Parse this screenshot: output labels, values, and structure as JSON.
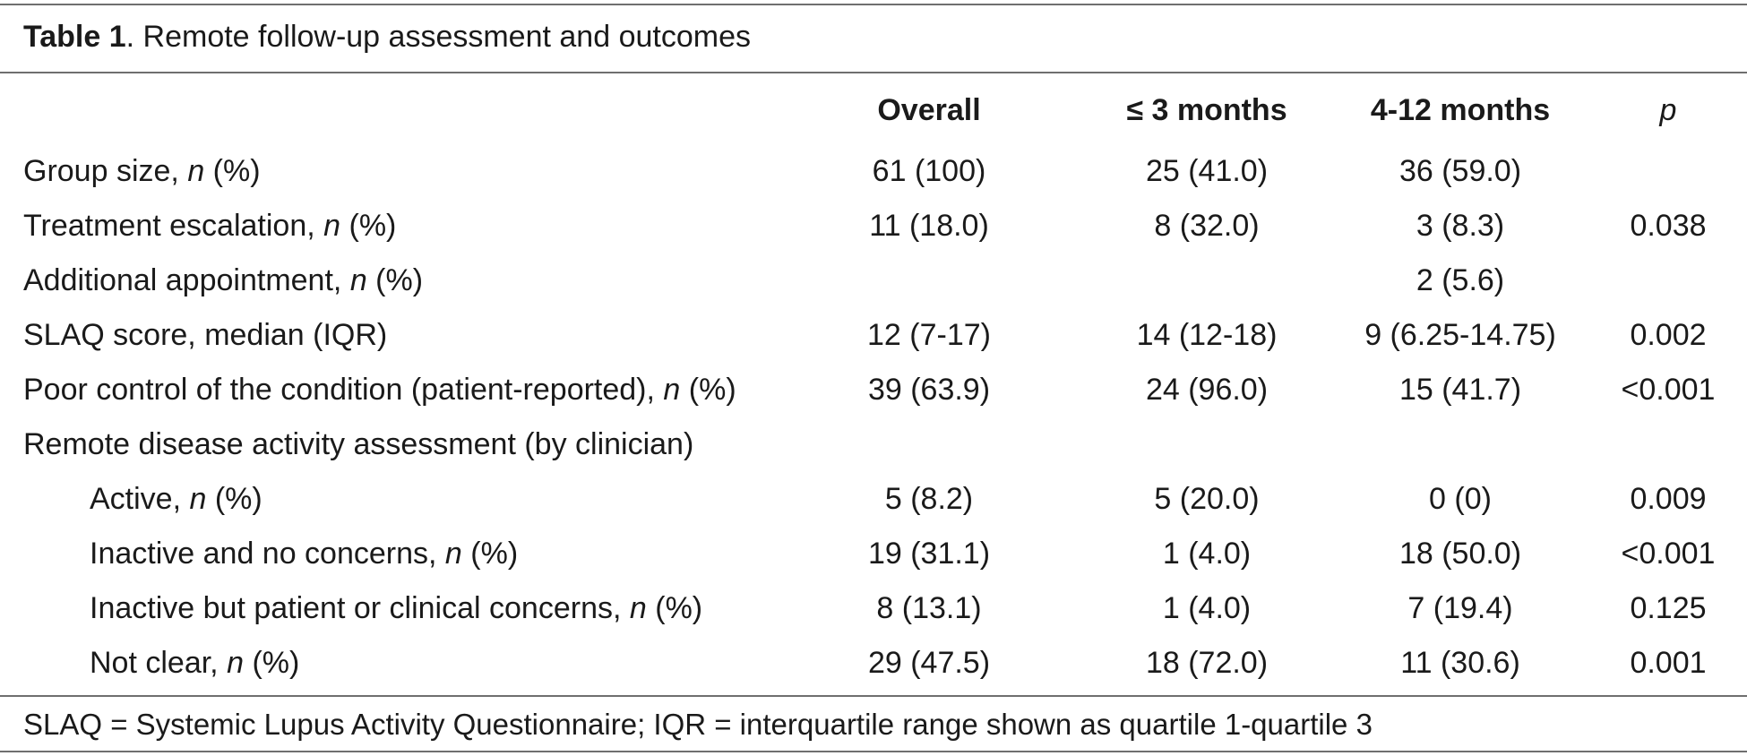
{
  "table": {
    "title_prefix": "Table 1",
    "title_rest": ". Remote follow-up assessment and outcomes",
    "columns": {
      "overall": "Overall",
      "le3": "≤ 3 months",
      "m4_12": "4-12 months",
      "p": "p"
    },
    "rows": [
      {
        "pre": "Group size, ",
        "it": "n",
        "post": " (%)",
        "overall": "61 (100)",
        "le3": "25 (41.0)",
        "m4_12": "36 (59.0)",
        "p": ""
      },
      {
        "pre": "Treatment escalation, ",
        "it": "n",
        "post": " (%)",
        "overall": "11 (18.0)",
        "le3": "8 (32.0)",
        "m4_12": "3 (8.3)",
        "p": "0.038"
      },
      {
        "pre": "Additional appointment, ",
        "it": "n",
        "post": " (%)",
        "overall": "",
        "le3": "",
        "m4_12": "2 (5.6)",
        "p": ""
      },
      {
        "pre": "SLAQ score, median (IQR)",
        "it": "",
        "post": "",
        "overall": "12 (7-17)",
        "le3": "14 (12-18)",
        "m4_12": "9 (6.25-14.75)",
        "p": "0.002"
      },
      {
        "pre": "Poor control of the condition (patient-reported), ",
        "it": "n",
        "post": " (%)",
        "overall": "39 (63.9)",
        "le3": "24 (96.0)",
        "m4_12": "15 (41.7)",
        "p": "<0.001"
      },
      {
        "pre": "Remote disease activity assessment (by clinician)",
        "it": "",
        "post": "",
        "overall": "",
        "le3": "",
        "m4_12": "",
        "p": ""
      },
      {
        "pre": "Active, ",
        "it": "n",
        "post": " (%)",
        "overall": "5 (8.2)",
        "le3": "5 (20.0)",
        "m4_12": "0 (0)",
        "p": "0.009"
      },
      {
        "pre": "Inactive and no concerns, ",
        "it": "n",
        "post": " (%)",
        "overall": "19 (31.1)",
        "le3": "1 (4.0)",
        "m4_12": "18 (50.0)",
        "p": "<0.001"
      },
      {
        "pre": "Inactive but patient or clinical concerns, ",
        "it": "n",
        "post": " (%)",
        "overall": "8 (13.1)",
        "le3": "1 (4.0)",
        "m4_12": "7 (19.4)",
        "p": "0.125"
      },
      {
        "pre": "Not clear, ",
        "it": "n",
        "post": " (%)",
        "overall": "29 (47.5)",
        "le3": "18 (72.0)",
        "m4_12": "11 (30.6)",
        "p": "0.001"
      }
    ],
    "footnote": "SLAQ = Systemic Lupus Activity Questionnaire; IQR = interquartile range shown as quartile 1-quartile 3"
  }
}
